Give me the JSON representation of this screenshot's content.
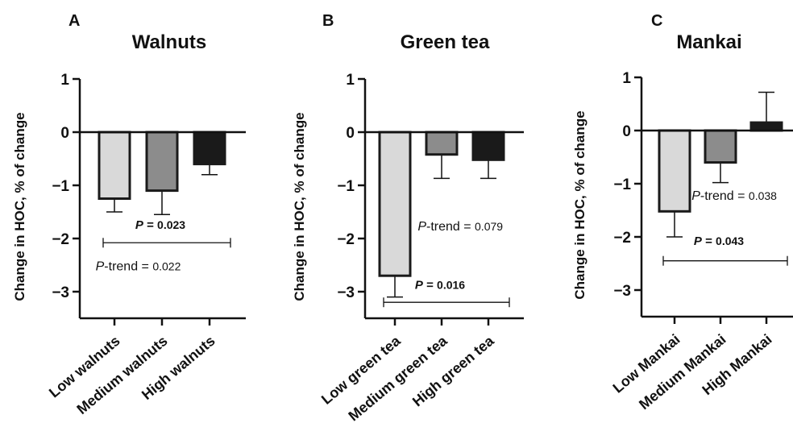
{
  "chart_data": [
    {
      "type": "bar",
      "panel": "A",
      "title": "Walnuts",
      "ylabel": "Change in HOC, % of change",
      "xlabel": "",
      "categories": [
        "Low walnuts",
        "Medium walnuts",
        "High walnuts"
      ],
      "values": [
        -1.25,
        -1.1,
        -0.6
      ],
      "error_bars": [
        0.25,
        0.45,
        0.2
      ],
      "colors": [
        "#d9d9d9",
        "#8c8c8c",
        "#1a1a1a"
      ],
      "ylim": [
        -3.5,
        1
      ],
      "yticks": [
        "1",
        "0",
        "−1",
        "−2",
        "−3"
      ],
      "ytick_values": [
        1,
        0,
        -1,
        -2,
        -3
      ],
      "annotations": [
        {
          "type": "bracket",
          "from": 0,
          "to": 2,
          "y": -2.08,
          "label_italic": "P",
          "label_rest": " = ",
          "label_value": "0.023",
          "label_y": -1.82,
          "bold": true
        },
        {
          "type": "text",
          "label_italic": "P",
          "label_rest": "-trend = ",
          "label_value": "0.022",
          "label_x": 0.5,
          "label_y": -2.6,
          "bold": false
        }
      ]
    },
    {
      "type": "bar",
      "panel": "B",
      "title": "Green tea",
      "ylabel": "Change in HOC, % of change",
      "xlabel": "",
      "categories": [
        "Low green tea",
        "Medium green tea",
        "High green tea"
      ],
      "values": [
        -2.7,
        -0.42,
        -0.52
      ],
      "error_bars": [
        0.4,
        0.45,
        0.35
      ],
      "colors": [
        "#d9d9d9",
        "#8c8c8c",
        "#1a1a1a"
      ],
      "ylim": [
        -3.5,
        1
      ],
      "yticks": [
        "1",
        "0",
        "−1",
        "−2",
        "−3"
      ],
      "ytick_values": [
        1,
        0,
        -1,
        -2,
        -3
      ],
      "annotations": [
        {
          "type": "bracket",
          "from": 0,
          "to": 2,
          "y": -3.2,
          "label_italic": "P",
          "label_rest": " = ",
          "label_value": "0.016",
          "label_y": -2.95,
          "bold": true
        },
        {
          "type": "text",
          "label_italic": "P",
          "label_rest": "-trend = ",
          "label_value": "0.079",
          "label_x": 1.4,
          "label_y": -1.85,
          "bold": false
        }
      ]
    },
    {
      "type": "bar",
      "panel": "C",
      "title": "Mankai",
      "ylabel": "Change in HOC, % of change",
      "xlabel": "",
      "categories": [
        "Low Mankai",
        "Medium Mankai",
        "High Mankai"
      ],
      "values": [
        -1.52,
        -0.6,
        0.15
      ],
      "error_bars": [
        0.48,
        0.38,
        0.57
      ],
      "colors": [
        "#d9d9d9",
        "#8c8c8c",
        "#1a1a1a"
      ],
      "ylim": [
        -3.5,
        1
      ],
      "yticks": [
        "1",
        "0",
        "−1",
        "−2",
        "−3"
      ],
      "ytick_values": [
        1,
        0,
        -1,
        -2,
        -3
      ],
      "annotations": [
        {
          "type": "bracket",
          "from": 0,
          "to": 2,
          "y": -2.45,
          "label_italic": "P",
          "label_rest": " = ",
          "label_value": "0.043",
          "label_y": -2.15,
          "bold": true
        },
        {
          "type": "text",
          "label_italic": "P",
          "label_rest": "-trend = ",
          "label_value": "0.038",
          "label_x": 1.3,
          "label_y": -1.3,
          "bold": false
        }
      ]
    }
  ]
}
